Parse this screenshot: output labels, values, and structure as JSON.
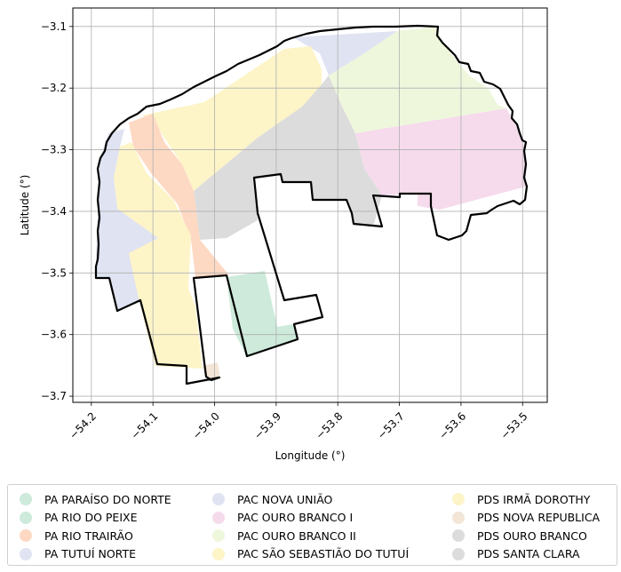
{
  "map": {
    "x_axis": {
      "label": "Longitude (°)",
      "range": [
        -54.23,
        -53.46
      ],
      "ticks": [
        -54.2,
        -54.1,
        -54.0,
        -53.9,
        -53.8,
        -53.7,
        -53.6,
        -53.5
      ],
      "tick_labels": [
        "−54.2",
        "−54.1",
        "−54.0",
        "−53.9",
        "−53.8",
        "−53.7",
        "−53.6",
        "−53.5"
      ]
    },
    "y_axis": {
      "label": "Latitude (°)",
      "range": [
        -3.71,
        -3.07
      ],
      "ticks": [
        -3.1,
        -3.2,
        -3.3,
        -3.4,
        -3.5,
        -3.6,
        -3.7
      ],
      "tick_labels": [
        "−3.1",
        "−3.2",
        "−3.3",
        "−3.4",
        "−3.5",
        "−3.6",
        "−3.7"
      ]
    },
    "grid": true,
    "legend_placement": "bottom, below axes, 3 columns"
  },
  "legend": {
    "columns": [
      [
        {
          "label": "PA PARAÍSO DO NORTE",
          "color": "#cdeadb"
        },
        {
          "label": "PA RIO DO PEIXE",
          "color": "#cdeadb"
        },
        {
          "label": "PA RIO TRAIRÃO",
          "color": "#fdd9c3"
        },
        {
          "label": "PA TUTUÍ NORTE",
          "color": "#dfe3f2"
        }
      ],
      [
        {
          "label": "PAC NOVA UNIÃO",
          "color": "#dfe3f2"
        },
        {
          "label": "PAC OURO BRANCO I",
          "color": "#f6dbec"
        },
        {
          "label": "PAC OURO BRANCO II",
          "color": "#eef7dc"
        },
        {
          "label": "PAC SÃO SEBASTIÃO DO TUTUÍ",
          "color": "#fdf4c8"
        }
      ],
      [
        {
          "label": "PDS IRMÃ DOROTHY",
          "color": "#fdf4c8"
        },
        {
          "label": "PDS NOVA REPUBLICA",
          "color": "#f3e6d6"
        },
        {
          "label": "PDS OURO BRANCO",
          "color": "#dcdcdc"
        },
        {
          "label": "PDS SANTA CLARA",
          "color": "#dcdcdc"
        }
      ]
    ]
  }
}
